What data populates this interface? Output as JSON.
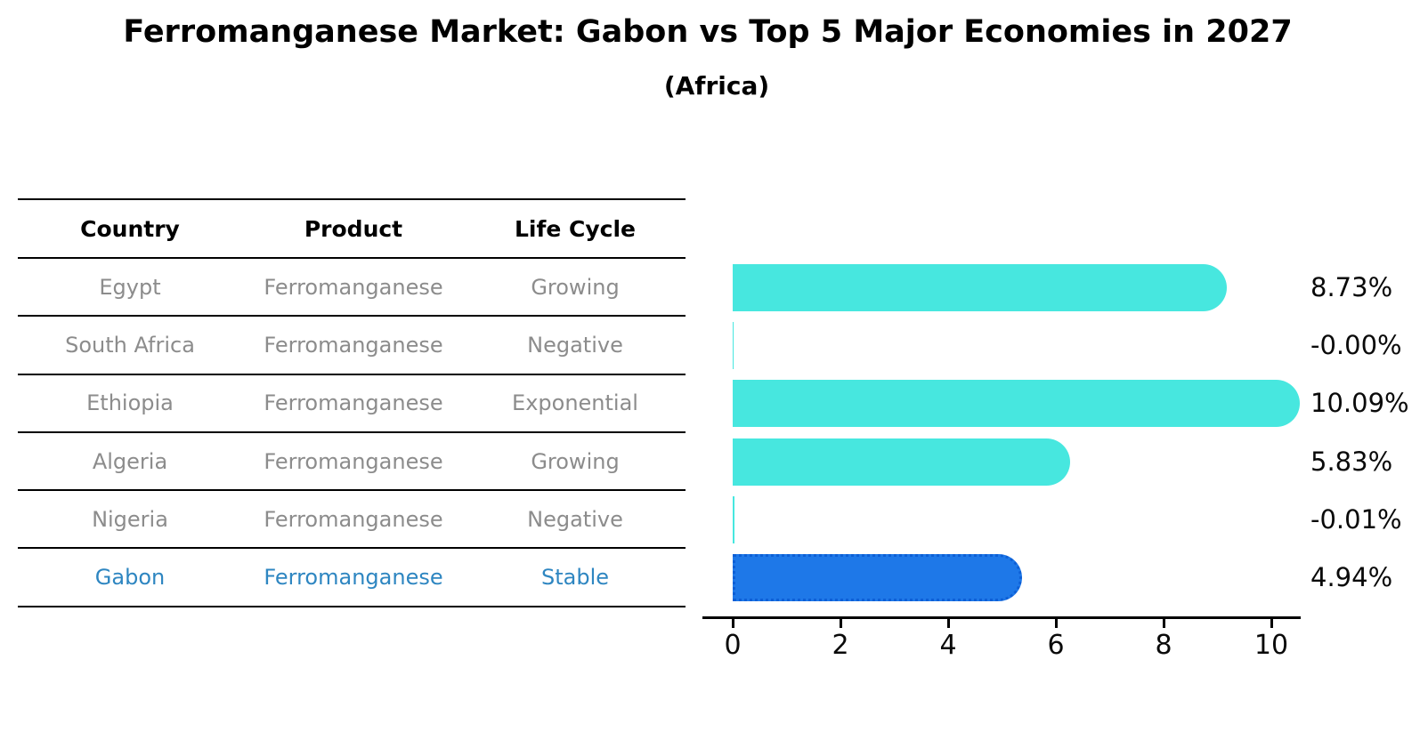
{
  "title": "Ferromanganese Market: Gabon vs Top 5 Major Economies in 2027",
  "subtitle": "(Africa)",
  "table": {
    "headers": [
      "Country",
      "Product",
      "Life Cycle"
    ],
    "rows": [
      {
        "country": "Egypt",
        "product": "Ferromanganese",
        "life_cycle": "Growing"
      },
      {
        "country": "South Africa",
        "product": "Ferromanganese",
        "life_cycle": "Negative"
      },
      {
        "country": "Ethiopia",
        "product": "Ferromanganese",
        "life_cycle": "Exponential"
      },
      {
        "country": "Algeria",
        "product": "Ferromanganese",
        "life_cycle": "Growing"
      },
      {
        "country": "Nigeria",
        "product": "Ferromanganese",
        "life_cycle": "Negative"
      },
      {
        "country": "Gabon",
        "product": "Ferromanganese",
        "life_cycle": "Stable"
      }
    ],
    "highlight_row": "Gabon"
  },
  "chart_data": {
    "type": "bar",
    "orientation": "horizontal",
    "categories": [
      "Egypt",
      "South Africa",
      "Ethiopia",
      "Algeria",
      "Nigeria",
      "Gabon"
    ],
    "values": [
      8.73,
      -0.0,
      10.09,
      5.83,
      -0.01,
      4.94
    ],
    "value_labels": [
      "8.73%",
      "-0.00%",
      "10.09%",
      "5.83%",
      "-0.01%",
      "4.94%"
    ],
    "x_ticks": [
      "0",
      "2",
      "4",
      "6",
      "8",
      "10"
    ],
    "xlim": [
      0,
      10.5
    ],
    "grid": false,
    "legend": false,
    "highlight_index": 5,
    "bar_color": "#47e7df",
    "highlight_bar_color": "#1e78e8",
    "highlight_text_color": "#2e86c1",
    "row_text_color": "#8c8c8c",
    "axis_color": "#000000"
  }
}
